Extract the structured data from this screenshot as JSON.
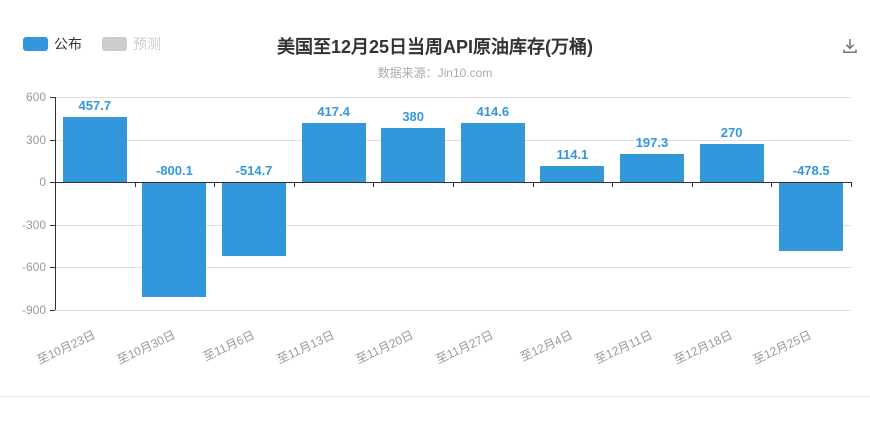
{
  "header": {
    "title": "美国至12月25日当周API原油库存(万桶)",
    "subtitle": "数据来源：Jin10.com"
  },
  "legend": {
    "items": [
      {
        "label": "公布",
        "color": "#3398db",
        "text_color": "#333333",
        "active": true
      },
      {
        "label": "预测",
        "color": "#cccccc",
        "text_color": "#cccccc",
        "active": false
      }
    ]
  },
  "toolbar": {
    "download_icon": "download-icon"
  },
  "chart_data": {
    "type": "bar",
    "title": "美国至12月25日当周API原油库存(万桶)",
    "subtitle": "数据来源：Jin10.com",
    "categories": [
      "至10月23日",
      "至10月30日",
      "至11月6日",
      "至11月13日",
      "至11月20日",
      "至11月27日",
      "至12月4日",
      "至12月11日",
      "至12月18日",
      "至12月25日"
    ],
    "series": [
      {
        "name": "公布",
        "color": "#3398db",
        "values": [
          457.7,
          -800.1,
          -514.7,
          417.4,
          380,
          414.6,
          114.1,
          197.3,
          270,
          -478.5
        ]
      },
      {
        "name": "预测",
        "color": "#cccccc",
        "values": []
      }
    ],
    "xlabel": "",
    "ylabel": "",
    "ylim": [
      -900,
      600
    ],
    "yticks": [
      600,
      300,
      0,
      -300,
      -600,
      -900
    ],
    "grid": true,
    "legend_position": "top-left",
    "colors": {
      "bar": "#3398db",
      "bar_value_label": "#3398db",
      "axis_line": "#333333",
      "gridline": "#e0e0e0",
      "tick_label": "#999999"
    }
  }
}
